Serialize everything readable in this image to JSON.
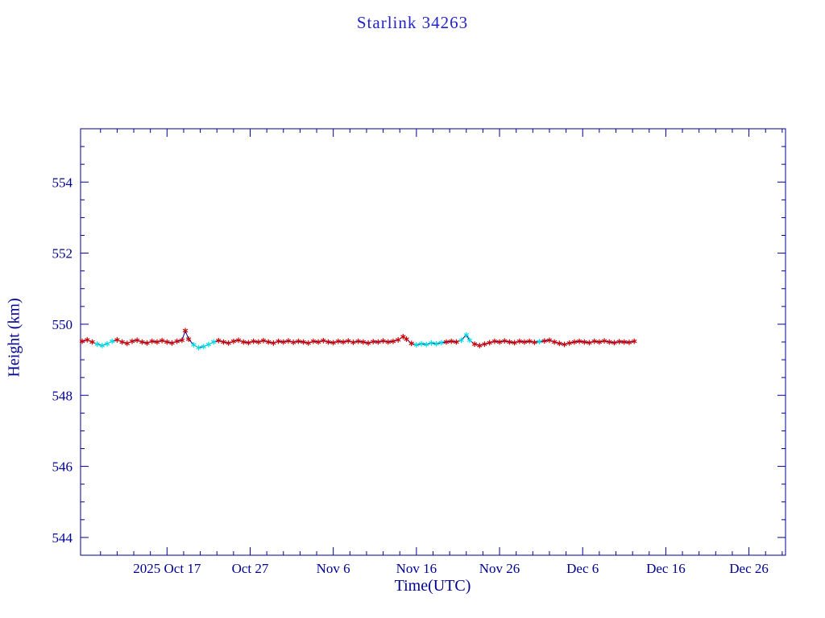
{
  "colors": {
    "background": "#ffffff",
    "axis": "#000090",
    "title": "#2323cc",
    "line": "#000090",
    "red": "#cc0000",
    "cyan": "#00dde0"
  },
  "chart_data": {
    "type": "line",
    "title": "Starlink 34263",
    "xlabel": "Time(UTC)",
    "ylabel": "Height (km)",
    "grid": false,
    "legend": null,
    "marker": "asterisk",
    "x_axis": {
      "unit": "days relative to 2025-10-17 00:00 UTC",
      "min": -10.4,
      "max": 74.4,
      "minor_step": 2,
      "ticks": [
        {
          "d": 0,
          "label": "2025 Oct 17"
        },
        {
          "d": 10,
          "label": "Oct 27"
        },
        {
          "d": 20,
          "label": "Nov 6"
        },
        {
          "d": 30,
          "label": "Nov 16"
        },
        {
          "d": 40,
          "label": "Nov 26"
        },
        {
          "d": 50,
          "label": "Dec 6"
        },
        {
          "d": 60,
          "label": "Dec 16"
        },
        {
          "d": 70,
          "label": "Dec 26"
        }
      ]
    },
    "y_axis": {
      "min": 543.5,
      "max": 555.5,
      "minor_step": 0.5,
      "ticks": [
        544,
        546,
        548,
        550,
        552,
        554
      ]
    },
    "series_meta": [
      {
        "name": "observed-red",
        "color": "#cc0000",
        "marker": "asterisk"
      },
      {
        "name": "observed-cyan",
        "color": "#00dde0",
        "marker": "asterisk"
      }
    ],
    "points_format": "[day, height_km, colorIndex(0=red,1=cyan)]",
    "points": [
      [
        -10.2,
        549.52,
        0
      ],
      [
        -9.6,
        549.56,
        0
      ],
      [
        -9.0,
        549.5,
        0
      ],
      [
        -8.4,
        549.44,
        1
      ],
      [
        -7.8,
        549.4,
        1
      ],
      [
        -7.2,
        549.45,
        1
      ],
      [
        -6.6,
        549.52,
        1
      ],
      [
        -6.0,
        549.56,
        0
      ],
      [
        -5.4,
        549.5,
        0
      ],
      [
        -4.8,
        549.46,
        0
      ],
      [
        -4.2,
        549.52,
        0
      ],
      [
        -3.6,
        549.55,
        0
      ],
      [
        -3.0,
        549.5,
        0
      ],
      [
        -2.4,
        549.47,
        0
      ],
      [
        -1.8,
        549.52,
        0
      ],
      [
        -1.2,
        549.5,
        0
      ],
      [
        -0.6,
        549.54,
        0
      ],
      [
        0.0,
        549.5,
        0
      ],
      [
        0.6,
        549.47,
        0
      ],
      [
        1.2,
        549.52,
        0
      ],
      [
        1.8,
        549.55,
        0
      ],
      [
        2.2,
        549.82,
        0
      ],
      [
        2.6,
        549.58,
        0
      ],
      [
        3.2,
        549.42,
        1
      ],
      [
        3.8,
        549.34,
        1
      ],
      [
        4.4,
        549.37,
        1
      ],
      [
        5.0,
        549.43,
        1
      ],
      [
        5.6,
        549.5,
        1
      ],
      [
        6.2,
        549.54,
        0
      ],
      [
        6.8,
        549.5,
        0
      ],
      [
        7.4,
        549.47,
        0
      ],
      [
        8.0,
        549.52,
        0
      ],
      [
        8.6,
        549.55,
        0
      ],
      [
        9.2,
        549.5,
        0
      ],
      [
        9.8,
        549.48,
        0
      ],
      [
        10.4,
        549.52,
        0
      ],
      [
        11.0,
        549.5,
        0
      ],
      [
        11.6,
        549.54,
        0
      ],
      [
        12.2,
        549.5,
        0
      ],
      [
        12.8,
        549.47,
        0
      ],
      [
        13.4,
        549.52,
        0
      ],
      [
        14.0,
        549.5,
        0
      ],
      [
        14.6,
        549.53,
        0
      ],
      [
        15.2,
        549.49,
        0
      ],
      [
        15.8,
        549.52,
        0
      ],
      [
        16.4,
        549.5,
        0
      ],
      [
        17.0,
        549.47,
        0
      ],
      [
        17.6,
        549.52,
        0
      ],
      [
        18.2,
        549.5,
        0
      ],
      [
        18.8,
        549.54,
        0
      ],
      [
        19.4,
        549.5,
        0
      ],
      [
        20.0,
        549.48,
        0
      ],
      [
        20.6,
        549.52,
        0
      ],
      [
        21.2,
        549.5,
        0
      ],
      [
        21.8,
        549.53,
        0
      ],
      [
        22.4,
        549.49,
        0
      ],
      [
        23.0,
        549.52,
        0
      ],
      [
        23.6,
        549.5,
        0
      ],
      [
        24.2,
        549.47,
        0
      ],
      [
        24.8,
        549.51,
        0
      ],
      [
        25.4,
        549.5,
        0
      ],
      [
        26.0,
        549.53,
        0
      ],
      [
        26.6,
        549.5,
        0
      ],
      [
        27.2,
        549.52,
        0
      ],
      [
        27.8,
        549.56,
        0
      ],
      [
        28.4,
        549.65,
        0
      ],
      [
        28.8,
        549.58,
        0
      ],
      [
        29.4,
        549.46,
        0
      ],
      [
        30.0,
        549.42,
        1
      ],
      [
        30.6,
        549.45,
        1
      ],
      [
        31.2,
        549.43,
        1
      ],
      [
        31.8,
        549.47,
        1
      ],
      [
        32.4,
        549.45,
        1
      ],
      [
        33.0,
        549.48,
        1
      ],
      [
        33.6,
        549.5,
        0
      ],
      [
        34.2,
        549.52,
        0
      ],
      [
        34.8,
        549.5,
        0
      ],
      [
        35.4,
        549.55,
        1
      ],
      [
        36.0,
        549.7,
        1
      ],
      [
        36.4,
        549.55,
        1
      ],
      [
        37.0,
        549.44,
        0
      ],
      [
        37.6,
        549.4,
        0
      ],
      [
        38.2,
        549.44,
        0
      ],
      [
        38.8,
        549.48,
        0
      ],
      [
        39.4,
        549.52,
        0
      ],
      [
        40.0,
        549.5,
        0
      ],
      [
        40.6,
        549.53,
        0
      ],
      [
        41.2,
        549.5,
        0
      ],
      [
        41.8,
        549.48,
        0
      ],
      [
        42.4,
        549.52,
        0
      ],
      [
        43.0,
        549.5,
        0
      ],
      [
        43.6,
        549.52,
        0
      ],
      [
        44.2,
        549.49,
        0
      ],
      [
        44.8,
        549.51,
        1
      ],
      [
        45.4,
        549.53,
        0
      ],
      [
        46.0,
        549.55,
        0
      ],
      [
        46.6,
        549.5,
        0
      ],
      [
        47.2,
        549.46,
        0
      ],
      [
        47.8,
        549.43,
        0
      ],
      [
        48.4,
        549.47,
        0
      ],
      [
        49.0,
        549.5,
        0
      ],
      [
        49.6,
        549.52,
        0
      ],
      [
        50.2,
        549.5,
        0
      ],
      [
        50.8,
        549.48,
        0
      ],
      [
        51.4,
        549.52,
        0
      ],
      [
        52.0,
        549.5,
        0
      ],
      [
        52.6,
        549.53,
        0
      ],
      [
        53.2,
        549.5,
        0
      ],
      [
        53.8,
        549.48,
        0
      ],
      [
        54.4,
        549.51,
        0
      ],
      [
        55.0,
        549.5,
        0
      ],
      [
        55.6,
        549.49,
        0
      ],
      [
        56.2,
        549.52,
        0
      ]
    ]
  }
}
